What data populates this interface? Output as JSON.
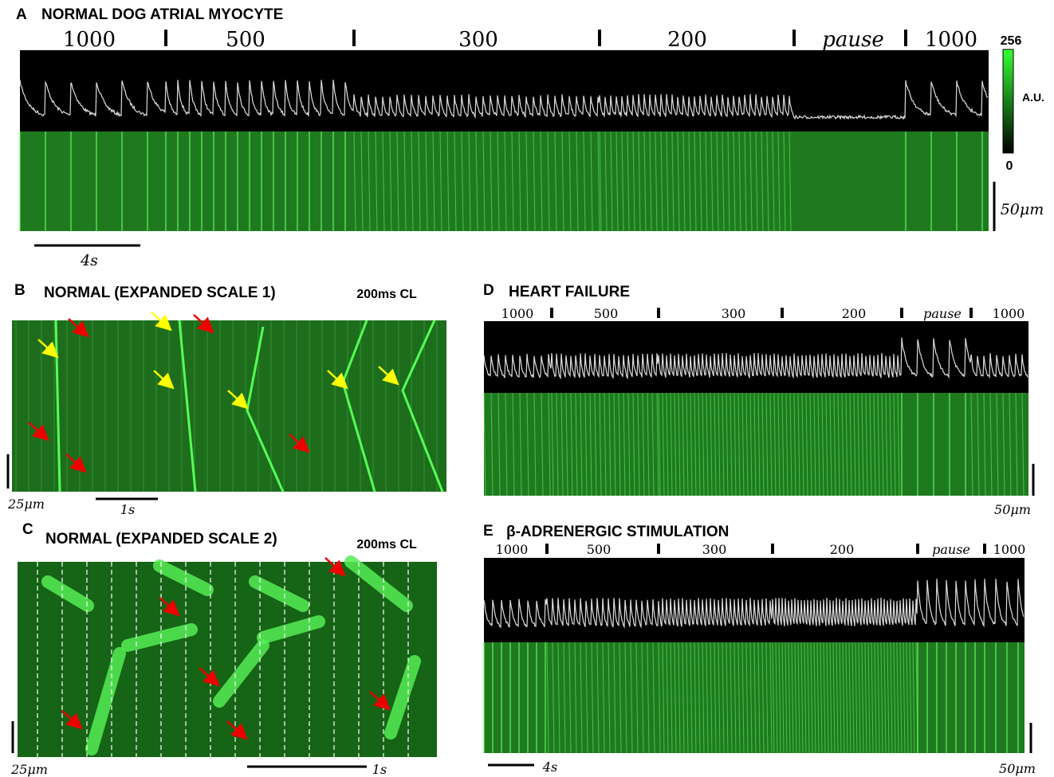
{
  "panels": [
    {
      "letter": "A",
      "title": "NORMAL DOG ATRIAL MYOCYTE",
      "segments": [
        "1000",
        "500",
        "300",
        "200",
        "pause",
        "1000"
      ],
      "colorbar": {
        "max": "256",
        "unit": "A.U.",
        "min": "0"
      },
      "scale_x": "4s",
      "scale_y": "50μm"
    },
    {
      "letter": "B",
      "title": "NORMAL (EXPANDED SCALE 1)",
      "note": "200ms CL",
      "scale_y": "25μm",
      "scale_x": "1s"
    },
    {
      "letter": "C",
      "title": "NORMAL (EXPANDED SCALE 2)",
      "note": "200ms CL",
      "scale_y": "25μm",
      "scale_x": "1s"
    },
    {
      "letter": "D",
      "title": "HEART FAILURE",
      "segments": [
        "1000",
        "500",
        "300",
        "200",
        "pause",
        "1000"
      ],
      "scale_y": "50μm"
    },
    {
      "letter": "E",
      "title": "β-ADRENERGIC STIMULATION",
      "segments": [
        "1000",
        "500",
        "300",
        "200",
        "pause",
        "1000"
      ],
      "scale_x": "4s",
      "scale_y": "50μm"
    }
  ]
}
